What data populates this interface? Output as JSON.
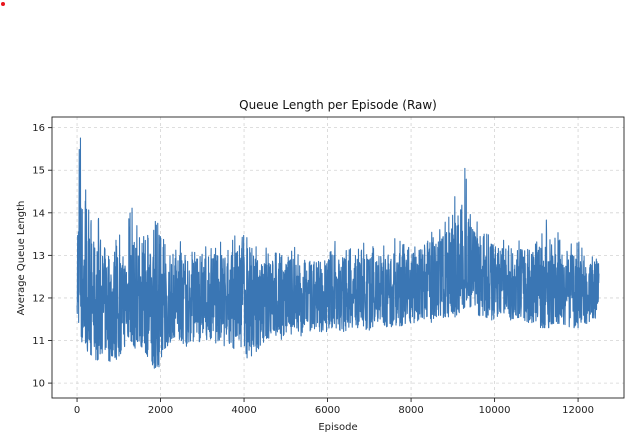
{
  "marker": {
    "color": "#e8141c"
  },
  "chart_data": {
    "type": "line",
    "title": "Queue Length per Episode (Raw)",
    "xlabel": "Episode",
    "ylabel": "Average Queue Length",
    "xlim": [
      -600,
      13100
    ],
    "ylim": [
      9.65,
      16.25
    ],
    "xticks": [
      0,
      2000,
      4000,
      6000,
      8000,
      10000,
      12000
    ],
    "yticks": [
      10,
      11,
      12,
      13,
      14,
      15,
      16
    ],
    "grid": true,
    "grid_style": "dashed",
    "line_color": "#3a76b4",
    "episodes": 12500,
    "series": [
      {
        "x": [
          0,
          50,
          100,
          200,
          300,
          400,
          500,
          600,
          700,
          800,
          900,
          1000,
          1100,
          1200,
          1300,
          1400,
          1500,
          1600,
          1700,
          1800,
          1900,
          2000,
          2100,
          2200,
          2300,
          2400,
          2500,
          2600,
          2700,
          2800,
          2900,
          3000,
          3200,
          3400,
          3600,
          3800,
          4000,
          4200,
          4400,
          4600,
          4800,
          5000,
          5200,
          5400,
          5600,
          5800,
          6000,
          6200,
          6400,
          6600,
          6800,
          7000,
          7200,
          7400,
          7600,
          7800,
          8000,
          8200,
          8400,
          8600,
          8800,
          9000,
          9100,
          9200,
          9300,
          9400,
          9500,
          9600,
          9800,
          10000,
          10200,
          10400,
          10600,
          10800,
          11000,
          11200,
          11300,
          11400,
          11600,
          11800,
          12000,
          12200,
          12400,
          12500
        ],
        "y_low": [
          11.5,
          11.4,
          11.0,
          10.8,
          10.7,
          10.6,
          10.5,
          10.7,
          10.6,
          10.4,
          10.5,
          10.6,
          10.8,
          10.9,
          11.0,
          10.8,
          10.9,
          10.8,
          10.6,
          10.4,
          10.3,
          10.4,
          10.8,
          10.9,
          10.9,
          11.0,
          10.9,
          10.8,
          10.8,
          10.9,
          10.9,
          11.0,
          11.0,
          10.9,
          10.8,
          10.6,
          10.5,
          10.6,
          10.8,
          11.0,
          11.0,
          11.0,
          11.1,
          11.1,
          11.1,
          11.1,
          11.2,
          11.2,
          11.2,
          11.3,
          11.3,
          11.2,
          11.3,
          11.3,
          11.3,
          11.3,
          11.4,
          11.4,
          11.4,
          11.4,
          11.4,
          11.5,
          11.6,
          11.7,
          11.8,
          11.8,
          11.7,
          11.6,
          11.5,
          11.4,
          11.5,
          11.4,
          11.4,
          11.4,
          11.3,
          11.3,
          11.3,
          11.4,
          11.4,
          11.3,
          11.3,
          11.4,
          11.4,
          11.6
        ],
        "y_high": [
          15.2,
          15.7,
          16.0,
          14.6,
          14.2,
          14.0,
          13.9,
          13.7,
          13.8,
          13.6,
          13.5,
          13.5,
          13.5,
          13.6,
          14.3,
          14.0,
          13.5,
          13.6,
          13.5,
          13.7,
          13.9,
          13.6,
          13.3,
          13.3,
          13.1,
          13.2,
          13.5,
          13.2,
          13.2,
          13.3,
          13.1,
          13.4,
          13.3,
          13.4,
          13.2,
          13.6,
          13.5,
          13.3,
          13.4,
          13.2,
          13.1,
          13.1,
          13.2,
          13.0,
          13.2,
          13.1,
          13.1,
          13.4,
          13.1,
          13.2,
          13.3,
          13.3,
          13.2,
          13.3,
          13.5,
          13.3,
          13.5,
          13.4,
          13.6,
          13.6,
          13.8,
          14.2,
          14.8,
          15.0,
          15.1,
          14.5,
          14.0,
          13.8,
          13.6,
          13.6,
          13.4,
          13.5,
          13.4,
          13.4,
          13.5,
          13.6,
          14.3,
          13.8,
          13.4,
          13.3,
          13.4,
          13.2,
          13.2,
          13.0
        ],
        "y_mid": [
          12.5,
          13.0,
          12.5,
          12.1,
          12.0,
          11.9,
          11.9,
          11.9,
          11.9,
          11.8,
          11.8,
          11.8,
          11.9,
          12.0,
          12.0,
          12.0,
          11.9,
          11.9,
          11.8,
          11.8,
          11.7,
          11.7,
          11.8,
          11.9,
          11.9,
          12.0,
          12.0,
          11.9,
          11.9,
          12.0,
          12.0,
          12.0,
          12.0,
          12.0,
          12.0,
          11.9,
          11.8,
          11.8,
          11.9,
          12.0,
          12.0,
          12.0,
          12.0,
          12.0,
          12.0,
          12.0,
          12.1,
          12.1,
          12.1,
          12.1,
          12.1,
          12.1,
          12.2,
          12.2,
          12.2,
          12.2,
          12.3,
          12.3,
          12.4,
          12.4,
          12.5,
          12.6,
          12.7,
          12.8,
          12.8,
          12.7,
          12.6,
          12.5,
          12.4,
          12.4,
          12.4,
          12.3,
          12.3,
          12.3,
          12.3,
          12.2,
          12.3,
          12.2,
          12.2,
          12.2,
          12.1,
          12.1,
          12.2,
          12.3
        ]
      }
    ]
  }
}
